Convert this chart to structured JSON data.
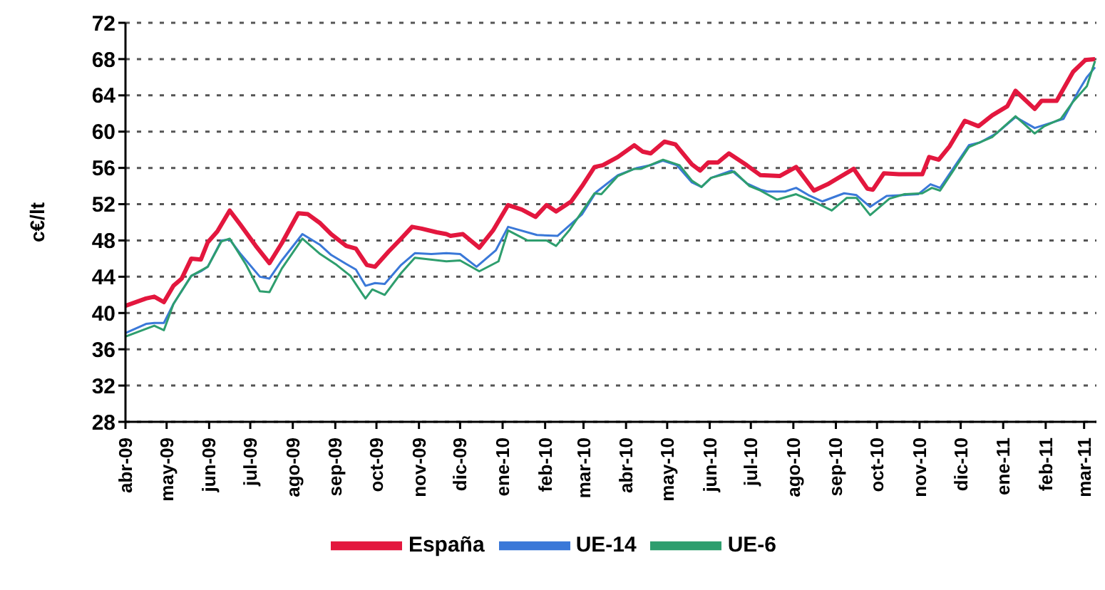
{
  "chart_data": {
    "type": "line",
    "ylabel": "c€/lt",
    "ylim": [
      28,
      72
    ],
    "yticks": [
      28,
      32,
      36,
      40,
      44,
      48,
      52,
      56,
      60,
      64,
      68,
      72
    ],
    "grid": "y",
    "legend": "bottom",
    "line_style": "solid",
    "marker": "none",
    "xlim": [
      "2009-04-01",
      "2011-03-10"
    ],
    "xticks": [
      {
        "value": "2009-04",
        "label": "abr-09"
      },
      {
        "value": "2009-05",
        "label": "may-09"
      },
      {
        "value": "2009-06",
        "label": "jun-09"
      },
      {
        "value": "2009-07",
        "label": "jul-09"
      },
      {
        "value": "2009-08",
        "label": "ago-09"
      },
      {
        "value": "2009-09",
        "label": "sep-09"
      },
      {
        "value": "2009-10",
        "label": "oct-09"
      },
      {
        "value": "2009-11",
        "label": "nov-09"
      },
      {
        "value": "2009-12",
        "label": "dic-09"
      },
      {
        "value": "2010-01",
        "label": "ene-10"
      },
      {
        "value": "2010-02",
        "label": "feb-10"
      },
      {
        "value": "2010-03",
        "label": "mar-10"
      },
      {
        "value": "2010-04",
        "label": "abr-10"
      },
      {
        "value": "2010-05",
        "label": "may-10"
      },
      {
        "value": "2010-06",
        "label": "jun-10"
      },
      {
        "value": "2010-07",
        "label": "jul-10"
      },
      {
        "value": "2010-08",
        "label": "ago-10"
      },
      {
        "value": "2010-09",
        "label": "sep-10"
      },
      {
        "value": "2010-10",
        "label": "oct-10"
      },
      {
        "value": "2010-11",
        "label": "nov-10"
      },
      {
        "value": "2010-12",
        "label": "dic-10"
      },
      {
        "value": "2011-01",
        "label": "ene-11"
      },
      {
        "value": "2011-02",
        "label": "feb-11"
      },
      {
        "value": "2011-03",
        "label": "mar-11"
      }
    ],
    "series": [
      {
        "name": "España",
        "color": "#e3173e",
        "x": [
          "2009-04-01",
          "2009-04-16",
          "2009-04-22",
          "2009-04-29",
          "2009-05-06",
          "2009-05-12",
          "2009-05-19",
          "2009-05-26",
          "2009-05-31",
          "2009-06-07",
          "2009-06-16",
          "2009-06-24",
          "2009-07-05",
          "2009-07-15",
          "2009-07-24",
          "2009-08-05",
          "2009-08-12",
          "2009-08-21",
          "2009-08-29",
          "2009-09-09",
          "2009-09-16",
          "2009-09-24",
          "2009-09-30",
          "2009-10-10",
          "2009-10-19",
          "2009-10-27",
          "2009-11-03",
          "2009-11-14",
          "2009-11-21",
          "2009-11-24",
          "2009-12-03",
          "2009-12-15",
          "2009-12-25",
          "2010-01-05",
          "2010-01-15",
          "2010-01-25",
          "2010-02-02",
          "2010-02-09",
          "2010-02-20",
          "2010-02-28",
          "2010-03-09",
          "2010-03-15",
          "2010-03-26",
          "2010-04-07",
          "2010-04-13",
          "2010-04-19",
          "2010-04-29",
          "2010-05-07",
          "2010-05-19",
          "2010-05-25",
          "2010-05-31",
          "2010-06-07",
          "2010-06-15",
          "2010-06-28",
          "2010-07-08",
          "2010-07-22",
          "2010-08-03",
          "2010-08-16",
          "2010-08-26",
          "2010-09-14",
          "2010-09-24",
          "2010-09-28",
          "2010-10-06",
          "2010-10-17",
          "2010-11-03",
          "2010-11-08",
          "2010-11-15",
          "2010-11-23",
          "2010-12-04",
          "2010-12-14",
          "2010-12-24",
          "2011-01-04",
          "2011-01-10",
          "2011-01-24",
          "2011-01-29",
          "2011-02-09",
          "2011-02-21",
          "2011-03-02",
          "2011-03-09"
        ],
        "values": [
          40.8,
          41.6,
          41.8,
          41.2,
          43.0,
          43.8,
          46.0,
          45.9,
          47.8,
          49.0,
          51.3,
          49.7,
          47.4,
          45.5,
          47.7,
          51.0,
          50.9,
          49.9,
          48.7,
          47.4,
          47.1,
          45.3,
          45.1,
          46.8,
          48.2,
          49.5,
          49.3,
          48.9,
          48.7,
          48.5,
          48.7,
          47.2,
          49.1,
          51.9,
          51.4,
          50.6,
          51.9,
          51.2,
          52.3,
          54.0,
          56.1,
          56.3,
          57.2,
          58.5,
          57.8,
          57.6,
          58.9,
          58.6,
          56.4,
          55.7,
          56.6,
          56.6,
          57.6,
          56.3,
          55.2,
          55.1,
          56.1,
          53.5,
          54.2,
          55.9,
          53.7,
          53.6,
          55.4,
          55.3,
          55.3,
          57.2,
          56.9,
          58.4,
          61.2,
          60.6,
          61.8,
          62.8,
          64.5,
          62.5,
          63.4,
          63.4,
          66.6,
          67.9,
          68.0
        ]
      },
      {
        "name": "UE-14",
        "color": "#3a78d8",
        "x": [
          "2009-04-01",
          "2009-04-16",
          "2009-04-22",
          "2009-04-29",
          "2009-05-06",
          "2009-05-19",
          "2009-05-26",
          "2009-05-31",
          "2009-06-10",
          "2009-06-16",
          "2009-06-24",
          "2009-07-08",
          "2009-07-15",
          "2009-07-24",
          "2009-08-08",
          "2009-08-21",
          "2009-08-29",
          "2009-09-09",
          "2009-09-16",
          "2009-09-23",
          "2009-09-30",
          "2009-10-07",
          "2009-10-19",
          "2009-10-29",
          "2009-11-10",
          "2009-11-21",
          "2009-12-01",
          "2009-12-13",
          "2009-12-27",
          "2010-01-05",
          "2010-01-26",
          "2010-02-10",
          "2010-02-28",
          "2010-03-10",
          "2010-03-26",
          "2010-04-09",
          "2010-04-19",
          "2010-04-28",
          "2010-05-08",
          "2010-05-19",
          "2010-05-26",
          "2010-06-02",
          "2010-06-17",
          "2010-06-28",
          "2010-07-08",
          "2010-07-13",
          "2010-07-26",
          "2010-08-03",
          "2010-08-12",
          "2010-08-22",
          "2010-09-07",
          "2010-09-16",
          "2010-09-26",
          "2010-10-08",
          "2010-10-31",
          "2010-11-09",
          "2010-11-16",
          "2010-12-07",
          "2010-12-15",
          "2010-12-27",
          "2011-01-10",
          "2011-01-24",
          "2011-02-14",
          "2011-02-25",
          "2011-03-03",
          "2011-03-09"
        ],
        "values": [
          37.8,
          38.8,
          38.9,
          38.9,
          41.0,
          44.1,
          44.6,
          45.1,
          48.0,
          48.1,
          46.5,
          44.0,
          43.8,
          45.8,
          48.7,
          47.5,
          46.4,
          45.4,
          44.8,
          43.0,
          43.3,
          43.2,
          45.3,
          46.6,
          46.5,
          46.6,
          46.5,
          45.1,
          46.9,
          49.5,
          48.6,
          48.5,
          50.9,
          53.3,
          55.2,
          56.0,
          56.3,
          56.8,
          56.3,
          54.4,
          53.9,
          54.9,
          55.7,
          54.3,
          53.6,
          53.4,
          53.4,
          53.8,
          53.0,
          52.3,
          53.2,
          53.0,
          51.7,
          52.9,
          53.1,
          54.2,
          53.8,
          58.5,
          58.8,
          59.8,
          61.6,
          60.4,
          61.4,
          64.5,
          66.0,
          67.1
        ]
      },
      {
        "name": "UE-6",
        "color": "#2e9e6e",
        "x": [
          "2009-04-01",
          "2009-04-22",
          "2009-04-29",
          "2009-05-06",
          "2009-05-19",
          "2009-05-31",
          "2009-06-10",
          "2009-06-16",
          "2009-06-28",
          "2009-07-08",
          "2009-07-15",
          "2009-07-24",
          "2009-08-08",
          "2009-08-21",
          "2009-09-02",
          "2009-09-12",
          "2009-09-23",
          "2009-09-28",
          "2009-10-07",
          "2009-10-19",
          "2009-10-29",
          "2009-11-21",
          "2009-12-01",
          "2009-12-15",
          "2009-12-29",
          "2010-01-05",
          "2010-01-19",
          "2010-02-02",
          "2010-02-09",
          "2010-02-19",
          "2010-03-09",
          "2010-03-14",
          "2010-03-26",
          "2010-04-07",
          "2010-04-12",
          "2010-04-28",
          "2010-05-10",
          "2010-05-19",
          "2010-05-26",
          "2010-06-02",
          "2010-06-19",
          "2010-06-30",
          "2010-07-08",
          "2010-07-20",
          "2010-08-03",
          "2010-08-17",
          "2010-08-29",
          "2010-09-09",
          "2010-09-16",
          "2010-09-26",
          "2010-10-10",
          "2010-10-21",
          "2010-11-03",
          "2010-11-10",
          "2010-11-16",
          "2010-12-07",
          "2010-12-24",
          "2011-01-10",
          "2011-01-24",
          "2011-01-31",
          "2011-02-12",
          "2011-02-21",
          "2011-03-03",
          "2011-03-09"
        ],
        "values": [
          37.4,
          38.6,
          38.1,
          41.0,
          44.1,
          45.1,
          47.9,
          48.2,
          45.3,
          42.4,
          42.3,
          44.9,
          48.2,
          46.5,
          45.3,
          44.1,
          41.6,
          42.6,
          42.0,
          44.4,
          46.1,
          45.7,
          45.8,
          44.6,
          45.7,
          49.1,
          48.0,
          48.0,
          47.4,
          49.2,
          53.2,
          53.1,
          55.1,
          55.9,
          55.9,
          56.9,
          56.3,
          54.6,
          53.9,
          54.9,
          55.6,
          54.0,
          53.5,
          52.5,
          53.1,
          52.2,
          51.3,
          52.7,
          52.7,
          50.8,
          52.6,
          53.1,
          53.2,
          53.8,
          53.5,
          58.3,
          59.4,
          61.7,
          59.8,
          60.6,
          61.4,
          63.3,
          65.0,
          67.8
        ]
      }
    ]
  }
}
